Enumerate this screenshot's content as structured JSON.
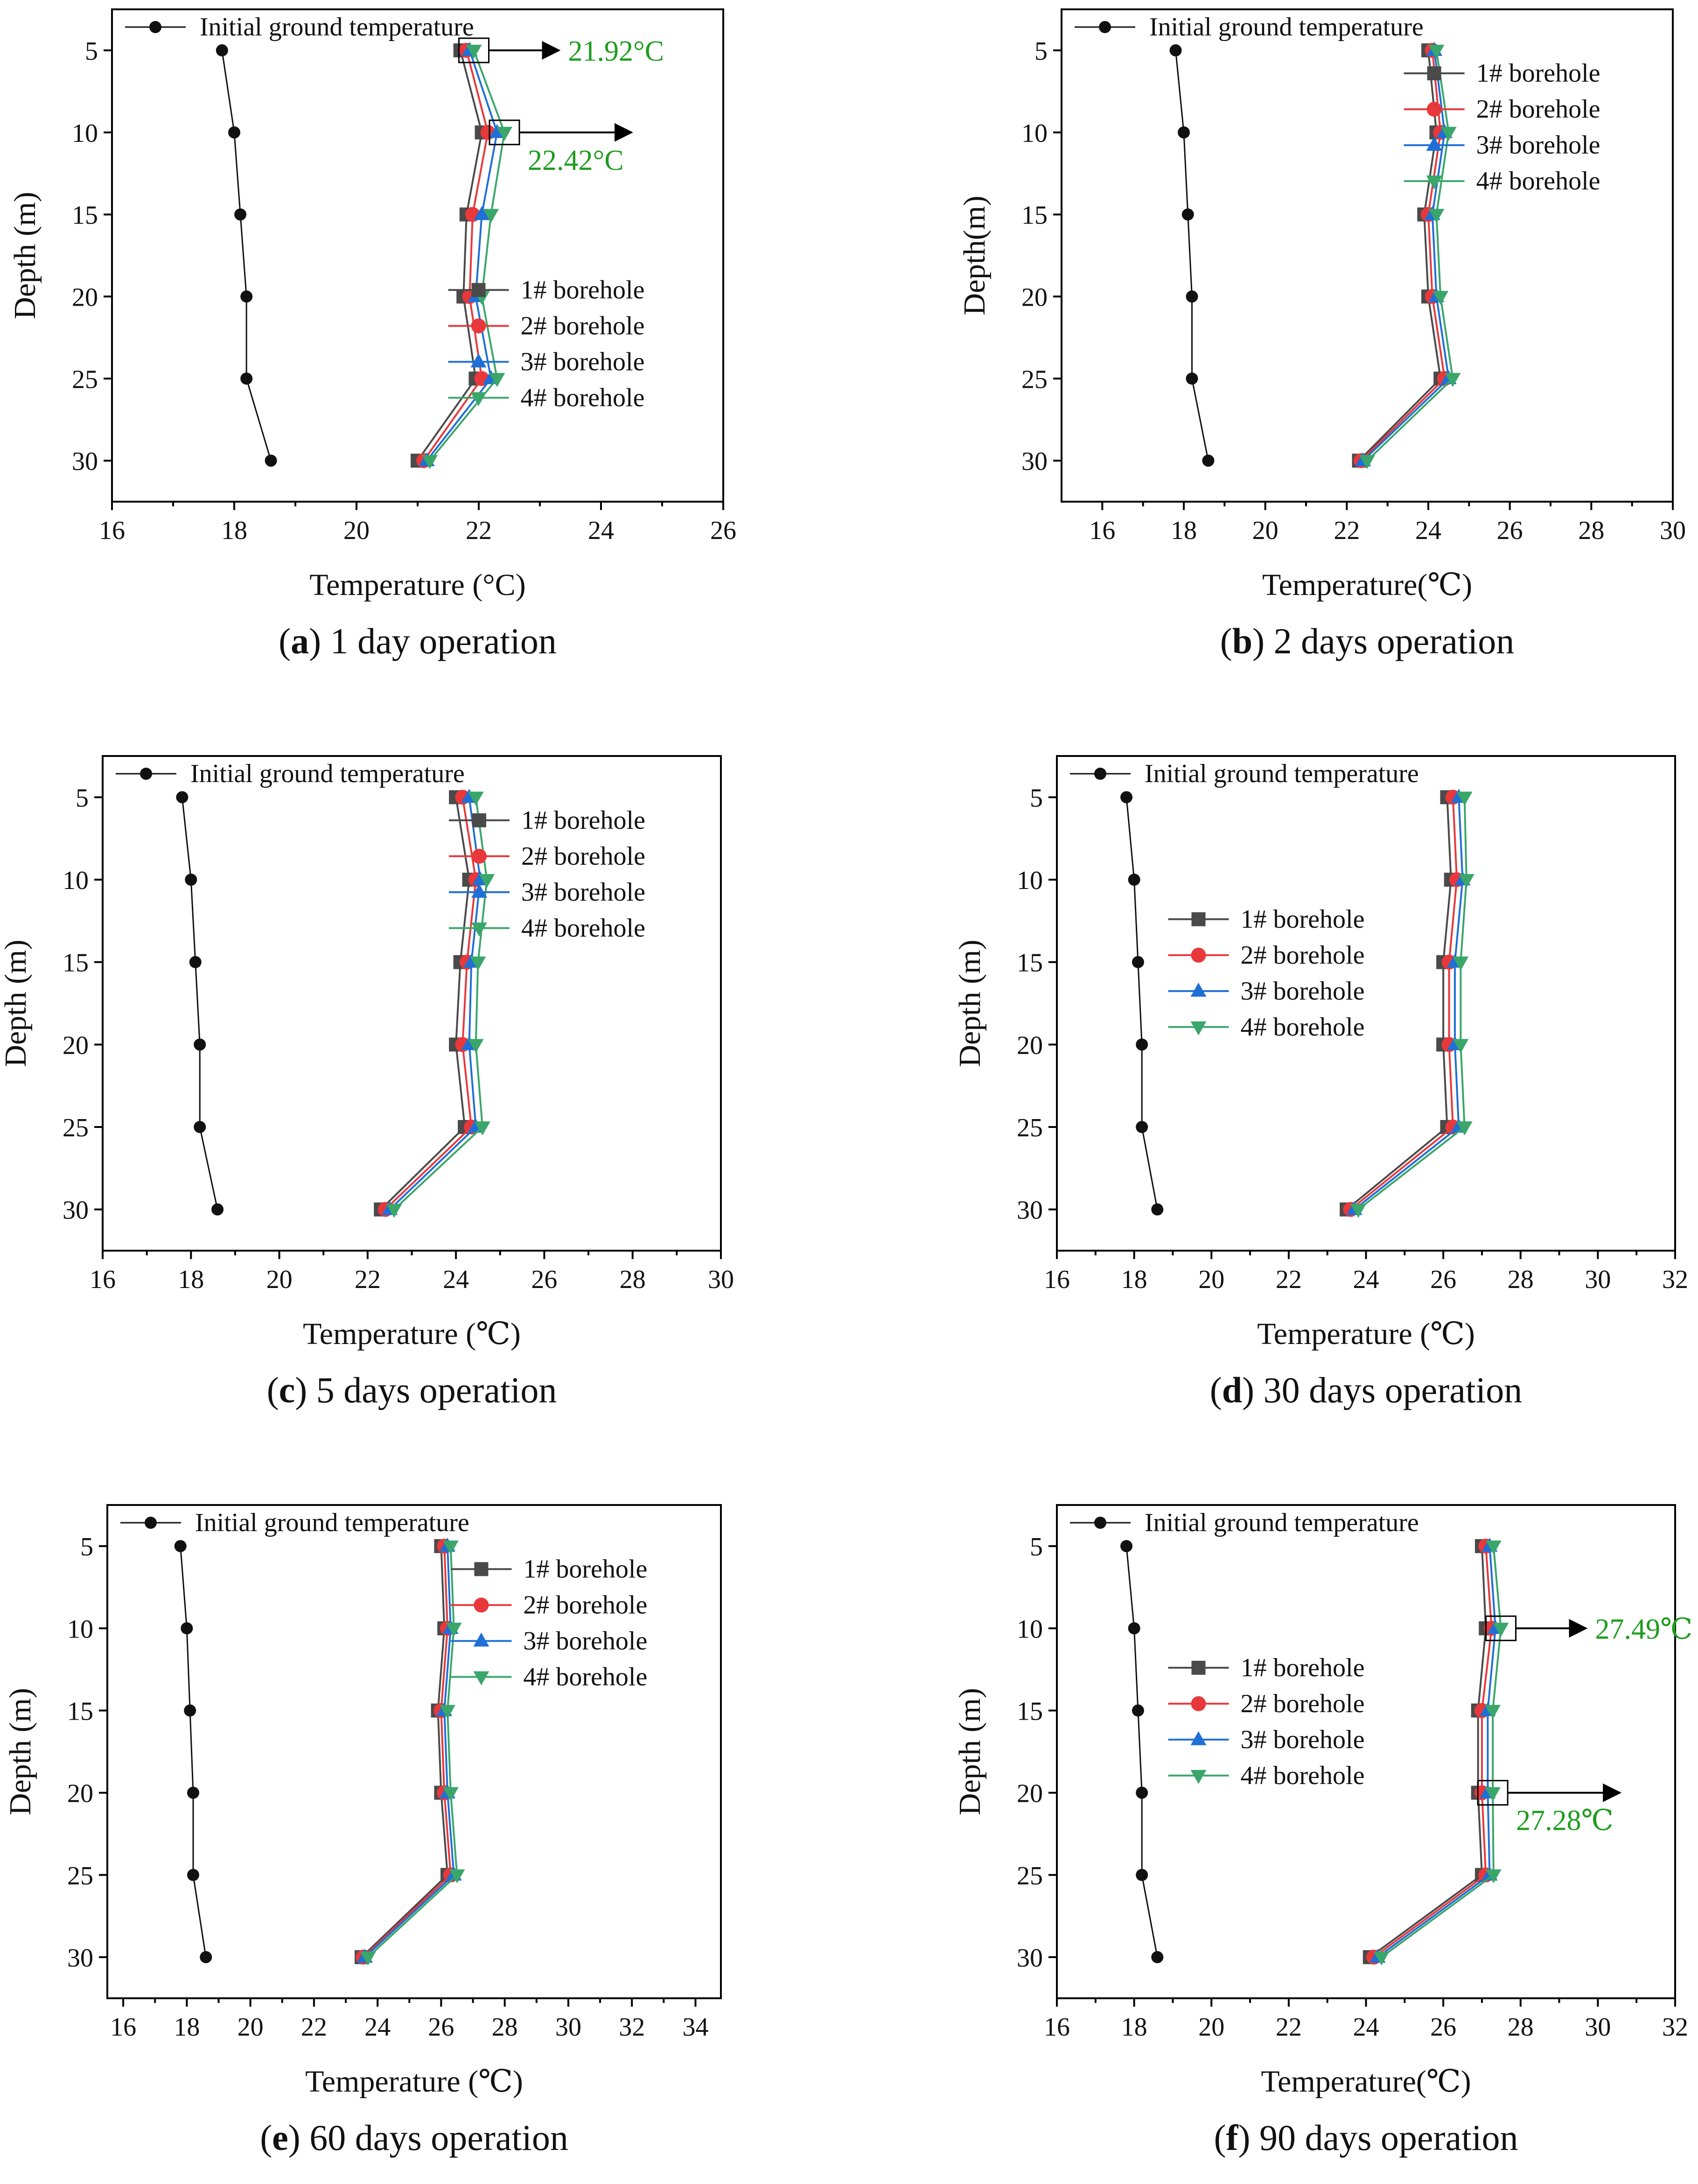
{
  "figure": {
    "description_visible": false
  },
  "style": {
    "series_colors": [
      "#111111",
      "#4a4a4a",
      "#e8383b",
      "#1f6fd6",
      "#3aa66a"
    ],
    "annotation_color": "#1e9c1e"
  },
  "chart_data": [
    {
      "type": "line",
      "panel_letter": "a",
      "caption": " 1 day operation",
      "xlabel": "Temperature (°C)",
      "ylabel": "Depth (m)",
      "xlim": [
        16,
        26
      ],
      "xticks": [
        16,
        18,
        20,
        22,
        24,
        26
      ],
      "ylim": [
        32.5,
        2.5
      ],
      "yticks": [
        5,
        10,
        15,
        20,
        25,
        30
      ],
      "y": [
        5,
        10,
        15,
        20,
        25,
        30
      ],
      "legend_position": "right-middle",
      "initial_legend_position": "top-left",
      "series": [
        {
          "name": "Initial ground temperature",
          "values": [
            17.8,
            18.0,
            18.1,
            18.2,
            18.2,
            18.6
          ]
        },
        {
          "name": "1# borehole",
          "values": [
            21.7,
            22.05,
            21.8,
            21.75,
            21.95,
            21.0
          ]
        },
        {
          "name": "2# borehole",
          "values": [
            21.8,
            22.15,
            21.9,
            21.85,
            22.05,
            21.1
          ]
        },
        {
          "name": "3# borehole",
          "values": [
            21.85,
            22.3,
            22.05,
            21.95,
            22.2,
            21.15
          ]
        },
        {
          "name": "4# borehole",
          "values": [
            21.92,
            22.42,
            22.2,
            22.05,
            22.3,
            21.2
          ]
        }
      ],
      "annotations": [
        {
          "text": "21.92°C",
          "x": 21.92,
          "y": 5
        },
        {
          "text": "22.42°C",
          "x": 22.42,
          "y": 10
        }
      ]
    },
    {
      "type": "line",
      "panel_letter": "b",
      "caption": " 2 days operation",
      "xlabel": "Temperature(℃)",
      "ylabel": "Depth(m)",
      "xlim": [
        15,
        30
      ],
      "xticks": [
        16,
        18,
        20,
        22,
        24,
        26,
        28,
        30
      ],
      "ylim": [
        32.5,
        2.5
      ],
      "yticks": [
        5,
        10,
        15,
        20,
        25,
        30
      ],
      "y": [
        5,
        10,
        15,
        20,
        25,
        30
      ],
      "legend_position": "top-right",
      "initial_legend_position": "top-left",
      "series": [
        {
          "name": "Initial ground temperature",
          "values": [
            17.8,
            18.0,
            18.1,
            18.2,
            18.2,
            18.6
          ]
        },
        {
          "name": "1# borehole",
          "values": [
            24.0,
            24.2,
            23.9,
            24.0,
            24.3,
            22.3
          ]
        },
        {
          "name": "2# borehole",
          "values": [
            24.1,
            24.3,
            24.0,
            24.1,
            24.4,
            22.35
          ]
        },
        {
          "name": "3# borehole",
          "values": [
            24.15,
            24.4,
            24.1,
            24.2,
            24.5,
            22.4
          ]
        },
        {
          "name": "4# borehole",
          "values": [
            24.2,
            24.5,
            24.2,
            24.3,
            24.6,
            22.5
          ]
        }
      ],
      "annotations": []
    },
    {
      "type": "line",
      "panel_letter": "c",
      "caption": " 5 days operation",
      "xlabel": "Temperature (℃)",
      "ylabel": "Depth (m)",
      "xlim": [
        16,
        30
      ],
      "xticks": [
        16,
        18,
        20,
        22,
        24,
        26,
        28,
        30
      ],
      "ylim": [
        32.5,
        2.5
      ],
      "yticks": [
        5,
        10,
        15,
        20,
        25,
        30
      ],
      "y": [
        5,
        10,
        15,
        20,
        25,
        30
      ],
      "legend_position": "top-right",
      "initial_legend_position": "top-left",
      "series": [
        {
          "name": "Initial ground temperature",
          "values": [
            17.8,
            18.0,
            18.1,
            18.2,
            18.2,
            18.6
          ]
        },
        {
          "name": "1# borehole",
          "values": [
            24.0,
            24.3,
            24.1,
            24.0,
            24.2,
            22.3
          ]
        },
        {
          "name": "2# borehole",
          "values": [
            24.15,
            24.45,
            24.25,
            24.15,
            24.35,
            22.4
          ]
        },
        {
          "name": "3# borehole",
          "values": [
            24.3,
            24.55,
            24.35,
            24.3,
            24.45,
            22.5
          ]
        },
        {
          "name": "4# borehole",
          "values": [
            24.45,
            24.7,
            24.5,
            24.45,
            24.6,
            22.6
          ]
        }
      ],
      "annotations": []
    },
    {
      "type": "line",
      "panel_letter": "d",
      "caption": " 30 days operation",
      "xlabel": "Temperature (℃)",
      "ylabel": "Depth (m)",
      "xlim": [
        16,
        32
      ],
      "xticks": [
        16,
        18,
        20,
        22,
        24,
        26,
        28,
        30,
        32
      ],
      "ylim": [
        32.5,
        2.5
      ],
      "yticks": [
        5,
        10,
        15,
        20,
        25,
        30
      ],
      "y": [
        5,
        10,
        15,
        20,
        25,
        30
      ],
      "legend_position": "center-left",
      "initial_legend_position": "top-left",
      "series": [
        {
          "name": "Initial ground temperature",
          "values": [
            17.8,
            18.0,
            18.1,
            18.2,
            18.2,
            18.6
          ]
        },
        {
          "name": "1# borehole",
          "values": [
            26.1,
            26.2,
            26.0,
            26.0,
            26.1,
            23.5
          ]
        },
        {
          "name": "2# borehole",
          "values": [
            26.25,
            26.35,
            26.15,
            26.15,
            26.25,
            23.6
          ]
        },
        {
          "name": "3# borehole",
          "values": [
            26.4,
            26.5,
            26.3,
            26.3,
            26.4,
            23.7
          ]
        },
        {
          "name": "4# borehole",
          "values": [
            26.55,
            26.6,
            26.45,
            26.45,
            26.55,
            23.8
          ]
        }
      ],
      "annotations": []
    },
    {
      "type": "line",
      "panel_letter": "e",
      "caption": " 60 days operation",
      "xlabel": "Temperature (℃)",
      "ylabel": "Depth (m)",
      "xlim": [
        15.5,
        34.8
      ],
      "xticks": [
        16,
        18,
        20,
        22,
        24,
        26,
        28,
        30,
        32,
        34
      ],
      "ylim": [
        32.5,
        2.5
      ],
      "yticks": [
        5,
        10,
        15,
        20,
        25,
        30
      ],
      "y": [
        5,
        10,
        15,
        20,
        25,
        30
      ],
      "legend_position": "top-right",
      "initial_legend_position": "top-left",
      "series": [
        {
          "name": "Initial ground temperature",
          "values": [
            17.8,
            18.0,
            18.1,
            18.2,
            18.2,
            18.6
          ]
        },
        {
          "name": "1# borehole",
          "values": [
            26.0,
            26.1,
            25.9,
            26.0,
            26.2,
            23.5
          ]
        },
        {
          "name": "2# borehole",
          "values": [
            26.1,
            26.2,
            26.0,
            26.1,
            26.3,
            23.55
          ]
        },
        {
          "name": "3# borehole",
          "values": [
            26.2,
            26.3,
            26.1,
            26.2,
            26.4,
            23.6
          ]
        },
        {
          "name": "4# borehole",
          "values": [
            26.3,
            26.4,
            26.2,
            26.3,
            26.5,
            23.7
          ]
        }
      ],
      "annotations": []
    },
    {
      "type": "line",
      "panel_letter": "f",
      "caption": " 90 days operation",
      "xlabel": "Temperature(℃)",
      "ylabel": "Depth (m)",
      "xlim": [
        16,
        32
      ],
      "xticks": [
        16,
        18,
        20,
        22,
        24,
        26,
        28,
        30,
        32
      ],
      "ylim": [
        32.5,
        2.5
      ],
      "yticks": [
        5,
        10,
        15,
        20,
        25,
        30
      ],
      "y": [
        5,
        10,
        15,
        20,
        25,
        30
      ],
      "legend_position": "center-left",
      "initial_legend_position": "top-left",
      "series": [
        {
          "name": "Initial ground temperature",
          "values": [
            17.8,
            18.0,
            18.1,
            18.2,
            18.2,
            18.6
          ]
        },
        {
          "name": "1# borehole",
          "values": [
            27.0,
            27.1,
            26.9,
            26.9,
            27.0,
            24.1
          ]
        },
        {
          "name": "2# borehole",
          "values": [
            27.1,
            27.25,
            27.0,
            27.0,
            27.1,
            24.2
          ]
        },
        {
          "name": "3# borehole",
          "values": [
            27.2,
            27.35,
            27.15,
            27.15,
            27.2,
            24.3
          ]
        },
        {
          "name": "4# borehole",
          "values": [
            27.3,
            27.49,
            27.28,
            27.28,
            27.3,
            24.4
          ]
        }
      ],
      "annotations": [
        {
          "text": "27.49℃",
          "x": 27.49,
          "y": 10
        },
        {
          "text": "27.28℃",
          "x": 27.28,
          "y": 20
        }
      ]
    }
  ]
}
